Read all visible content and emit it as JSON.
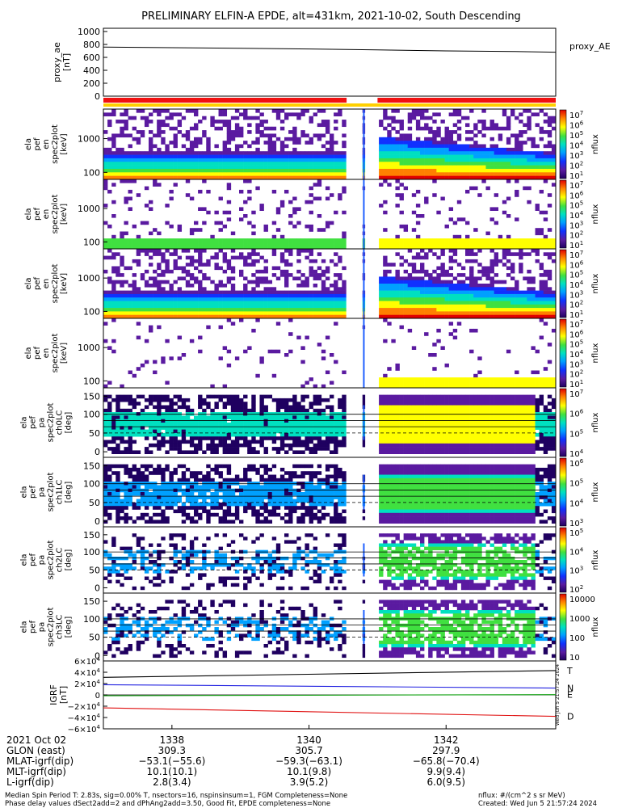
{
  "title": "PRELIMINARY ELFIN-A EPDE, alt=431km, 2021-10-02, South Descending",
  "chart_data": [
    {
      "type": "line",
      "panel": "proxy_ae",
      "ylabel": [
        "proxy_ae",
        "[nT]"
      ],
      "yticks": [
        "1000",
        "800",
        "600",
        "400",
        "200",
        "0"
      ],
      "ylim": [
        0,
        1000
      ],
      "legend": "proxy_AE",
      "series": [
        {
          "name": "proxy_AE",
          "x": [
            1337.0,
            1338.0,
            1339.0,
            1340.0,
            1341.0,
            1342.0,
            1343.0,
            1343.6
          ],
          "values": [
            760,
            750,
            740,
            730,
            715,
            700,
            690,
            680
          ]
        }
      ],
      "status_bar": {
        "colors": [
          "#f01010",
          "#ffd000"
        ],
        "segments": [
          {
            "from": 1337.0,
            "to": 1340.55,
            "color": "#f01010"
          },
          {
            "from": 1340.55,
            "to": 1341.0,
            "color": "#ffffff"
          },
          {
            "from": 1341.0,
            "to": 1343.6,
            "color": "#f01010"
          }
        ]
      }
    },
    {
      "type": "heatmap",
      "panel": "energy-omni",
      "ylabel": [
        "ela",
        "pef",
        "en",
        "spec2plot",
        "[keV]"
      ],
      "yticks": [
        "1000",
        "100"
      ],
      "cbar": {
        "label": "nflux",
        "ticks": [
          "10^7",
          "10^6",
          "10^5",
          "10^4",
          "10^3",
          "10^2",
          "10^1"
        ]
      }
    },
    {
      "type": "heatmap",
      "panel": "energy-perp",
      "ylabel": [
        "ela",
        "pef",
        "en",
        "spec2plot",
        "[keV]"
      ],
      "yticks": [
        "1000",
        "100"
      ],
      "cbar": {
        "label": "nflux",
        "ticks": [
          "10^7",
          "10^6",
          "10^5",
          "10^4",
          "10^3",
          "10^2",
          "10^1"
        ]
      }
    },
    {
      "type": "heatmap",
      "panel": "energy-anti",
      "ylabel": [
        "ela",
        "pef",
        "en",
        "spec2plot",
        "[keV]"
      ],
      "yticks": [
        "1000",
        "100"
      ],
      "cbar": {
        "label": "nflux",
        "ticks": [
          "10^7",
          "10^6",
          "10^5",
          "10^4",
          "10^3",
          "10^2",
          "10^1"
        ]
      }
    },
    {
      "type": "heatmap",
      "panel": "energy-para",
      "ylabel": [
        "ela",
        "pef",
        "en",
        "spec2plot",
        "[keV]"
      ],
      "yticks": [
        "1000",
        "100"
      ],
      "cbar": {
        "label": "nflux",
        "ticks": [
          "10^7",
          "10^6",
          "10^5",
          "10^4",
          "10^3",
          "10^2",
          "10^1"
        ]
      }
    },
    {
      "type": "heatmap",
      "panel": "pa-ch0",
      "ylabel": [
        "ela",
        "pef",
        "pa",
        "spec2plot",
        "ch0LC",
        "[deg]"
      ],
      "yticks": [
        "150",
        "100",
        "50",
        "0"
      ],
      "cbar": {
        "label": "nflux",
        "ticks": [
          "10^7",
          "10^6",
          "10^5",
          "10^4"
        ]
      }
    },
    {
      "type": "heatmap",
      "panel": "pa-ch1",
      "ylabel": [
        "ela",
        "pef",
        "pa",
        "spec2plot",
        "ch1LC",
        "[deg]"
      ],
      "yticks": [
        "150",
        "100",
        "50",
        "0"
      ],
      "cbar": {
        "label": "nflux",
        "ticks": [
          "10^6",
          "10^5",
          "10^4",
          "10^3"
        ]
      }
    },
    {
      "type": "heatmap",
      "panel": "pa-ch2",
      "ylabel": [
        "ela",
        "pef",
        "pa",
        "spec2plot",
        "ch2LC",
        "[deg]"
      ],
      "yticks": [
        "150",
        "100",
        "50",
        "0"
      ],
      "cbar": {
        "label": "nflux",
        "ticks": [
          "10^5",
          "10^4",
          "10^3",
          "10^2"
        ]
      }
    },
    {
      "type": "heatmap",
      "panel": "pa-ch3",
      "ylabel": [
        "ela",
        "pef",
        "pa",
        "spec2plot",
        "ch3LC",
        "[deg]"
      ],
      "yticks": [
        "150",
        "100",
        "50",
        "0"
      ],
      "cbar": {
        "label": "nflux",
        "ticks": [
          "10000",
          "1000",
          "100",
          "10"
        ]
      }
    },
    {
      "type": "line",
      "panel": "igrf",
      "ylabel": [
        "IGRF",
        "[nT]"
      ],
      "yticks": [
        "6×10^4",
        "4×10^4",
        "2×10^4",
        "0",
        "−2×10^4",
        "−4×10^4",
        "−6×10^4"
      ],
      "ylim": [
        -60000,
        60000
      ],
      "vertical_note": "Wed Jun 5 21:57:24 2024",
      "series": [
        {
          "name": "T",
          "color": "#000000",
          "x": [
            1337.0,
            1343.6
          ],
          "values": [
            31000,
            43000
          ]
        },
        {
          "name": "N",
          "color": "#2020e0",
          "x": [
            1337.0,
            1343.6
          ],
          "values": [
            18000,
            12000
          ]
        },
        {
          "name": "E",
          "color": "#10a010",
          "x": [
            1337.0,
            1343.6
          ],
          "values": [
            -1500,
            500
          ]
        },
        {
          "name": "D",
          "color": "#e01010",
          "x": [
            1337.0,
            1343.6
          ],
          "values": [
            -23000,
            -38000
          ]
        }
      ]
    }
  ],
  "x_axis": {
    "ticks": [
      {
        "x": 1338,
        "label": "1338"
      },
      {
        "x": 1340,
        "label": "1340"
      },
      {
        "x": 1342,
        "label": "1342"
      }
    ],
    "row_labels": [
      "2021 Oct 02",
      "GLON (east)",
      "MLAT-igrf(dip)",
      "MLT-igrf(dip)",
      "L-igrf(dip)"
    ],
    "rows": [
      [
        "309.3",
        "305.7",
        "297.9"
      ],
      [
        "−53.1(−55.6)",
        "−59.3(−63.1)",
        "−65.8(−70.4)"
      ],
      [
        "10.1(10.1)",
        "10.1(9.8)",
        "9.9(9.4)"
      ],
      [
        "2.8(3.4)",
        "3.9(5.2)",
        "6.0(9.5)"
      ]
    ]
  },
  "footer": {
    "line1": "Median Spin Period T: 2.83s, sig=0.00% T, nsectors=16, nspinsinsum=1, FGM Completeness=None",
    "line2": "Phase delay values dSect2add=2 and dPhAng2add=3.50, Good Fit, EPDE completeness=None",
    "units": "nflux: #/(cm^2 s sr MeV)",
    "created": "Created: Wed Jun  5 21:57:24 2024"
  }
}
